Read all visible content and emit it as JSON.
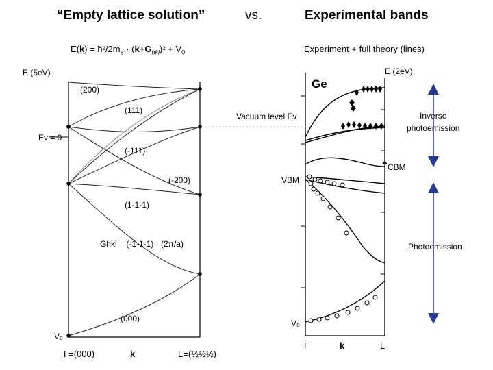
{
  "header": {
    "title_left": "“Empty lattice solution”",
    "vs": "vs.",
    "title_right": "Experimental bands"
  },
  "left_panel": {
    "formula": "E(k) = ħ²/2m · (k+G)² + V₀",
    "formula_parts": {
      "lhs": "E(",
      "k": "k",
      "mid": ") = ħ²/2m",
      "e_sub": "e",
      "dot_paren": " · (",
      "k2": "k",
      "plus_g": "+G",
      "hkl": "hkl",
      "tail": ")² + V",
      "zero": "0"
    },
    "y_axis_label": "E (5eV)",
    "ev_label": "Ev = 0",
    "v0_label": "V₀",
    "band_labels": [
      "(200)",
      "(111)",
      "(-111)",
      "(-200)",
      "(1-1-1)",
      "(000)"
    ],
    "g_formula": "Ghkl = (-1-1-1) · (2π/a)",
    "x_ticks": [
      "Γ=(000)",
      "k",
      "L=(½½½)"
    ]
  },
  "right_panel": {
    "subtitle": "Experiment + full theory (lines)",
    "energy_label": "E (2eV)",
    "material": "Ge",
    "vacuum_label": "Vacuum level Ev",
    "cbm_label": "CBM",
    "vbm_label": "VBM",
    "v0_label": "V₀",
    "x_ticks": [
      "Γ",
      "k",
      "L"
    ]
  },
  "annotations": {
    "inverse": "Inverse photoemission",
    "inverse_line1": "Inverse",
    "inverse_line2": "photoemission",
    "photo": "Photoemission"
  },
  "colors": {
    "arrow": "#2a3a8c",
    "ink": "#000000",
    "faint": "#9a9a9a"
  }
}
